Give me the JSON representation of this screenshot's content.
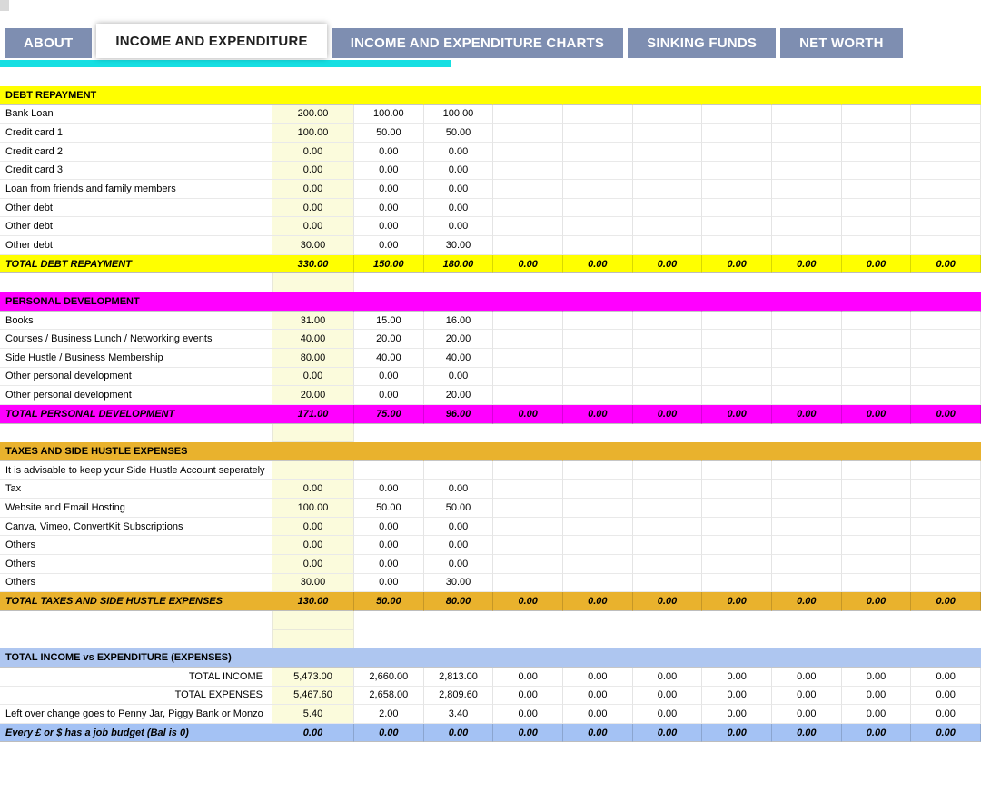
{
  "colors": {
    "tab_inactive": "#7e8eb1",
    "tab_active_text": "#1f1f1f",
    "cyan_strip": "#16dfe2",
    "first_col_bg": "#fbfbdc",
    "debt_band": "#ffff00",
    "personal_band": "#ff00ff",
    "taxes_band": "#e9b22d",
    "summary_header_band": "#aec6f0",
    "summary_total_band": "#a4c2f4"
  },
  "tabs": [
    {
      "label": "ABOUT",
      "active": false
    },
    {
      "label": "INCOME AND EXPENDITURE",
      "active": true
    },
    {
      "label": "INCOME AND EXPENDITURE CHARTS",
      "active": false
    },
    {
      "label": "SINKING FUNDS",
      "active": false
    },
    {
      "label": "NET WORTH",
      "active": false
    }
  ],
  "sheet": {
    "sections": [
      {
        "name": "debt-repayment",
        "rows": [
          {
            "kind": "header",
            "label": "DEBT REPAYMENT",
            "color": "#ffff00",
            "values": [
              "",
              "",
              "",
              "",
              "",
              "",
              "",
              "",
              "",
              ""
            ]
          },
          {
            "kind": "data",
            "label": "Bank Loan",
            "values": [
              "200.00",
              "100.00",
              "100.00",
              "",
              "",
              "",
              "",
              "",
              "",
              ""
            ]
          },
          {
            "kind": "data",
            "label": "Credit card 1",
            "values": [
              "100.00",
              "50.00",
              "50.00",
              "",
              "",
              "",
              "",
              "",
              "",
              ""
            ]
          },
          {
            "kind": "data",
            "label": "Credit card 2",
            "values": [
              "0.00",
              "0.00",
              "0.00",
              "",
              "",
              "",
              "",
              "",
              "",
              ""
            ]
          },
          {
            "kind": "data",
            "label": "Credit card 3",
            "values": [
              "0.00",
              "0.00",
              "0.00",
              "",
              "",
              "",
              "",
              "",
              "",
              ""
            ]
          },
          {
            "kind": "data",
            "label": "Loan from friends and family members",
            "values": [
              "0.00",
              "0.00",
              "0.00",
              "",
              "",
              "",
              "",
              "",
              "",
              ""
            ]
          },
          {
            "kind": "data",
            "label": "Other debt",
            "values": [
              "0.00",
              "0.00",
              "0.00",
              "",
              "",
              "",
              "",
              "",
              "",
              ""
            ]
          },
          {
            "kind": "data",
            "label": "Other debt",
            "values": [
              "0.00",
              "0.00",
              "0.00",
              "",
              "",
              "",
              "",
              "",
              "",
              ""
            ]
          },
          {
            "kind": "data",
            "label": "Other debt",
            "values": [
              "30.00",
              "0.00",
              "30.00",
              "",
              "",
              "",
              "",
              "",
              "",
              ""
            ]
          },
          {
            "kind": "total",
            "label": "TOTAL DEBT REPAYMENT",
            "color": "#ffff00",
            "values": [
              "330.00",
              "150.00",
              "180.00",
              "0.00",
              "0.00",
              "0.00",
              "0.00",
              "0.00",
              "0.00",
              "0.00"
            ]
          },
          {
            "kind": "spacer",
            "label": "",
            "values": [
              "",
              "",
              "",
              "",
              "",
              "",
              "",
              "",
              "",
              ""
            ]
          }
        ]
      },
      {
        "name": "personal-development",
        "rows": [
          {
            "kind": "header",
            "label": "PERSONAL DEVELOPMENT",
            "color": "#ff00ff",
            "values": [
              "",
              "",
              "",
              "",
              "",
              "",
              "",
              "",
              "",
              ""
            ]
          },
          {
            "kind": "data",
            "label": "Books",
            "values": [
              "31.00",
              "15.00",
              "16.00",
              "",
              "",
              "",
              "",
              "",
              "",
              ""
            ]
          },
          {
            "kind": "data",
            "label": "Courses / Business Lunch / Networking events",
            "values": [
              "40.00",
              "20.00",
              "20.00",
              "",
              "",
              "",
              "",
              "",
              "",
              ""
            ]
          },
          {
            "kind": "data",
            "label": "Side Hustle / Business Membership",
            "values": [
              "80.00",
              "40.00",
              "40.00",
              "",
              "",
              "",
              "",
              "",
              "",
              ""
            ]
          },
          {
            "kind": "data",
            "label": "Other personal development",
            "values": [
              "0.00",
              "0.00",
              "0.00",
              "",
              "",
              "",
              "",
              "",
              "",
              ""
            ]
          },
          {
            "kind": "data",
            "label": "Other personal development",
            "values": [
              "20.00",
              "0.00",
              "20.00",
              "",
              "",
              "",
              "",
              "",
              "",
              ""
            ]
          },
          {
            "kind": "total",
            "label": "TOTAL PERSONAL DEVELOPMENT",
            "color": "#ff00ff",
            "values": [
              "171.00",
              "75.00",
              "96.00",
              "0.00",
              "0.00",
              "0.00",
              "0.00",
              "0.00",
              "0.00",
              "0.00"
            ]
          },
          {
            "kind": "spacer",
            "label": "",
            "values": [
              "",
              "",
              "",
              "",
              "",
              "",
              "",
              "",
              "",
              ""
            ]
          }
        ]
      },
      {
        "name": "taxes-and-side-hustle",
        "rows": [
          {
            "kind": "header",
            "label": "TAXES AND SIDE HUSTLE EXPENSES",
            "color": "#e9b22d",
            "values": [
              "",
              "",
              "",
              "",
              "",
              "",
              "",
              "",
              "",
              ""
            ]
          },
          {
            "kind": "note",
            "label": "It is advisable to keep your Side Hustle Account seperately",
            "values": [
              "",
              "",
              "",
              "",
              "",
              "",
              "",
              "",
              "",
              ""
            ]
          },
          {
            "kind": "data",
            "label": "Tax",
            "values": [
              "0.00",
              "0.00",
              "0.00",
              "",
              "",
              "",
              "",
              "",
              "",
              ""
            ]
          },
          {
            "kind": "data",
            "label": "Website and Email Hosting",
            "values": [
              "100.00",
              "50.00",
              "50.00",
              "",
              "",
              "",
              "",
              "",
              "",
              ""
            ]
          },
          {
            "kind": "data",
            "label": "Canva, Vimeo, ConvertKit Subscriptions",
            "values": [
              "0.00",
              "0.00",
              "0.00",
              "",
              "",
              "",
              "",
              "",
              "",
              ""
            ]
          },
          {
            "kind": "data",
            "label": "Others",
            "values": [
              "0.00",
              "0.00",
              "0.00",
              "",
              "",
              "",
              "",
              "",
              "",
              ""
            ]
          },
          {
            "kind": "data",
            "label": "Others",
            "values": [
              "0.00",
              "0.00",
              "0.00",
              "",
              "",
              "",
              "",
              "",
              "",
              ""
            ]
          },
          {
            "kind": "data",
            "label": "Others",
            "values": [
              "30.00",
              "0.00",
              "30.00",
              "",
              "",
              "",
              "",
              "",
              "",
              ""
            ]
          },
          {
            "kind": "total",
            "label": "TOTAL TAXES AND SIDE HUSTLE EXPENSES",
            "color": "#e9b22d",
            "values": [
              "130.00",
              "50.00",
              "80.00",
              "0.00",
              "0.00",
              "0.00",
              "0.00",
              "0.00",
              "0.00",
              "0.00"
            ]
          },
          {
            "kind": "spacer",
            "label": "",
            "values": [
              "",
              "",
              "",
              "",
              "",
              "",
              "",
              "",
              "",
              ""
            ]
          },
          {
            "kind": "spacer",
            "label": "",
            "values": [
              "",
              "",
              "",
              "",
              "",
              "",
              "",
              "",
              "",
              ""
            ]
          }
        ]
      },
      {
        "name": "income-vs-expenditure",
        "rows": [
          {
            "kind": "header",
            "label": "TOTAL INCOME vs EXPENDITURE (EXPENSES)",
            "color": "#aec6f0",
            "values": [
              "",
              "",
              "",
              "",
              "",
              "",
              "",
              "",
              "",
              ""
            ]
          },
          {
            "kind": "data",
            "label": "TOTAL INCOME",
            "align": "right",
            "values": [
              "5,473.00",
              "2,660.00",
              "2,813.00",
              "0.00",
              "0.00",
              "0.00",
              "0.00",
              "0.00",
              "0.00",
              "0.00"
            ]
          },
          {
            "kind": "data",
            "label": "TOTAL EXPENSES",
            "align": "right",
            "values": [
              "5,467.60",
              "2,658.00",
              "2,809.60",
              "0.00",
              "0.00",
              "0.00",
              "0.00",
              "0.00",
              "0.00",
              "0.00"
            ]
          },
          {
            "kind": "data",
            "label": "Left over change goes to Penny Jar, Piggy Bank or Monzo",
            "values": [
              "5.40",
              "2.00",
              "3.40",
              "0.00",
              "0.00",
              "0.00",
              "0.00",
              "0.00",
              "0.00",
              "0.00"
            ]
          },
          {
            "kind": "total",
            "label": "Every £ or $ has a job budget (Bal is 0)",
            "color": "#a4c2f4",
            "values": [
              "0.00",
              "0.00",
              "0.00",
              "0.00",
              "0.00",
              "0.00",
              "0.00",
              "0.00",
              "0.00",
              "0.00"
            ]
          }
        ]
      }
    ]
  }
}
